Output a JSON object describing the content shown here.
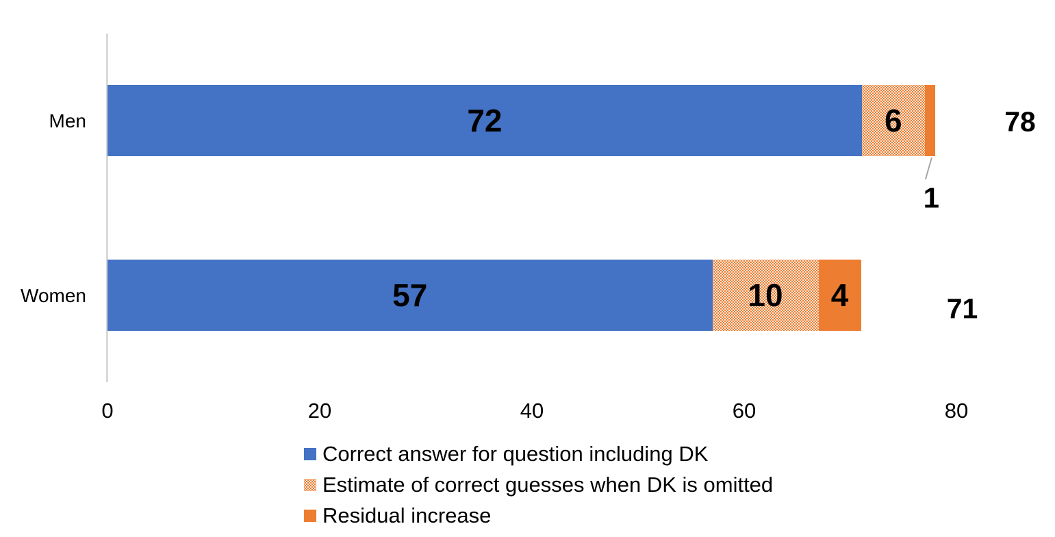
{
  "chart_data": {
    "type": "bar",
    "orientation": "horizontal",
    "stacked": true,
    "title": "",
    "xlabel": "",
    "ylabel": "",
    "grid": false,
    "legend_position": "bottom-left",
    "categories": [
      "Men",
      "Women"
    ],
    "series": [
      {
        "name": "Correct answer for question including DK",
        "style": "solid-blue",
        "values": [
          72,
          57
        ]
      },
      {
        "name": "Estimate of correct guesses when DK is omitted",
        "style": "dotted-orange",
        "values": [
          6,
          10
        ]
      },
      {
        "name": "Residual increase",
        "style": "solid-orange",
        "values": [
          1,
          4
        ]
      }
    ],
    "totals": [
      78,
      71
    ],
    "x_axis": {
      "range": [
        0,
        80
      ],
      "ticks": [
        0,
        20,
        40,
        60,
        80
      ]
    },
    "colors": {
      "blue": "#4472C4",
      "orange": "#ED7D31",
      "axis_line": "#D9D9D9",
      "leader_line": "#A6A6A6",
      "text": "#000000"
    }
  }
}
